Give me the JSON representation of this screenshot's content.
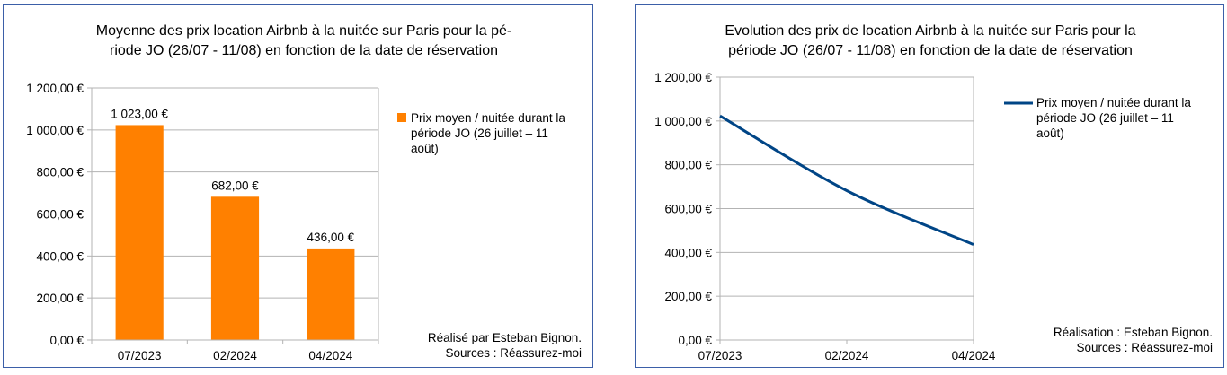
{
  "chart_data": [
    {
      "type": "bar",
      "title_lines": [
        "Moyenne des prix location Airbnb à la nuitée sur Paris pour la pé-",
        "riode JO (26/07 - 11/08) en fonction de la date de réservation"
      ],
      "categories": [
        "07/2023",
        "02/2024",
        "04/2024"
      ],
      "series": [
        {
          "name_lines": [
            "Prix moyen / nuitée durant la",
            "période JO (26 juillet – 11",
            "août)"
          ],
          "values": [
            1023,
            682,
            436
          ],
          "color": "#ff8000"
        }
      ],
      "data_labels": [
        "1 023,00 €",
        "682,00 €",
        "436,00 €"
      ],
      "ylim": [
        0,
        1200
      ],
      "yticks": [
        0,
        200,
        400,
        600,
        800,
        1000,
        1200
      ],
      "ytick_labels": [
        "0,00 €",
        "200,00 €",
        "400,00 €",
        "600,00 €",
        "800,00 €",
        "1 000,00 €",
        "1 200,00 €"
      ],
      "grid": true,
      "legend": "right",
      "note_lines": [
        "Réalisé par Esteban Bignon.",
        "Sources : Réassurez-moi"
      ]
    },
    {
      "type": "line",
      "title_lines": [
        "Evolution des prix de location Airbnb à la nuitée sur Paris pour la",
        "période JO (26/07 - 11/08) en fonction de la date de réservation"
      ],
      "categories": [
        "07/2023",
        "02/2024",
        "04/2024"
      ],
      "series": [
        {
          "name_lines": [
            "Prix moyen / nuitée durant la",
            "période JO (26 juillet – 11",
            "août)"
          ],
          "values": [
            1023,
            682,
            436
          ],
          "color": "#004586"
        }
      ],
      "ylim": [
        0,
        1200
      ],
      "yticks": [
        0,
        200,
        400,
        600,
        800,
        1000,
        1200
      ],
      "ytick_labels": [
        "0,00 €",
        "200,00 €",
        "400,00 €",
        "600,00 €",
        "800,00 €",
        "1 000,00 €",
        "1 200,00 €"
      ],
      "grid": true,
      "smooth": true,
      "legend": "right",
      "note_lines": [
        "Réalisation : Esteban Bignon.",
        "Sources : Réassurez-moi"
      ]
    }
  ]
}
